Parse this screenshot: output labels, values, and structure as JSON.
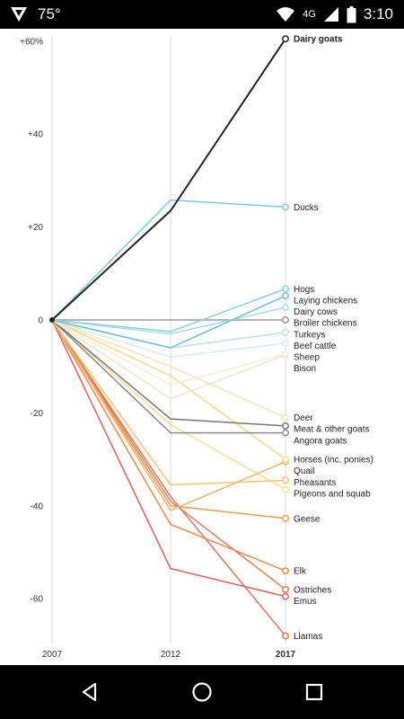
{
  "status_bar": {
    "temperature": "75°",
    "network": "4G",
    "time": "3:10",
    "icons": [
      "app-logo-icon",
      "wifi-icon",
      "signal-icon",
      "battery-icon"
    ]
  },
  "nav_bar": {
    "icons": [
      "back-icon",
      "home-icon",
      "recents-icon"
    ]
  },
  "chart_data": {
    "type": "line",
    "title": "",
    "xlabel": "",
    "ylabel": "",
    "x": [
      2007,
      2012,
      2017
    ],
    "x_tick_labels": [
      "2007",
      "2012",
      "2017"
    ],
    "x_tick_bold": [
      false,
      false,
      true
    ],
    "ylim": [
      -70,
      62
    ],
    "y_ticks": [
      60,
      40,
      20,
      0,
      -20,
      -40,
      -60
    ],
    "y_tick_labels": [
      "+60%",
      "+40",
      "+20",
      "0",
      "-20",
      "-40",
      "-60"
    ],
    "grid": "vertical",
    "legend": "end-labels",
    "series": [
      {
        "name": "Dairy goats",
        "values": [
          0,
          23.5,
          60.5
        ],
        "color": "#222222",
        "bold": true
      },
      {
        "name": "Ducks",
        "values": [
          0,
          25.8,
          24.3
        ],
        "color": "#7ec8e3"
      },
      {
        "name": "Hogs",
        "values": [
          0,
          -2.5,
          6.7
        ],
        "color": "#8ecfe8"
      },
      {
        "name": "Laying chickens",
        "values": [
          0,
          -6,
          5.2
        ],
        "color": "#6fbcd9"
      },
      {
        "name": "Dairy cows",
        "values": [
          0,
          -3,
          2.7
        ],
        "color": "#a9daee"
      },
      {
        "name": "Broiler chickens",
        "values": [
          0,
          0,
          0
        ],
        "color": "#999999"
      },
      {
        "name": "Turkeys",
        "values": [
          0,
          -6,
          -2.7
        ],
        "color": "#b8e0ef"
      },
      {
        "name": "Beef cattle",
        "values": [
          0,
          -8,
          -5
        ],
        "color": "#d5ecf5"
      },
      {
        "name": "Sheep",
        "values": [
          0,
          -14,
          -7.3
        ],
        "color": "#f5ecd2"
      },
      {
        "name": "Bison",
        "values": [
          0,
          -17,
          -7.5
        ],
        "color": "#efe6c8"
      },
      {
        "name": "Deer",
        "values": [
          0,
          -10,
          -21
        ],
        "color": "#f8e2b8"
      },
      {
        "name": "Meat & other goats",
        "values": [
          0,
          -21.3,
          -22.8
        ],
        "color": "#777777"
      },
      {
        "name": "Angora goats",
        "values": [
          0,
          -24.3,
          -24.3
        ],
        "color": "#8a8a8a"
      },
      {
        "name": "Horses (inc. ponies)",
        "values": [
          0,
          -12,
          -30
        ],
        "color": "#fbd68c"
      },
      {
        "name": "Quail",
        "values": [
          0,
          -41,
          -30.5
        ],
        "color": "#f6b167"
      },
      {
        "name": "Pheasants",
        "values": [
          0,
          -35.5,
          -34.5
        ],
        "color": "#f9c36f"
      },
      {
        "name": "Pigeons and squab",
        "values": [
          0,
          -22.5,
          -36.5
        ],
        "color": "#fbdc95"
      },
      {
        "name": "Geese",
        "values": [
          0,
          -40,
          -42.7
        ],
        "color": "#f39a51"
      },
      {
        "name": "Elk",
        "values": [
          0,
          -44,
          -54
        ],
        "color": "#ee8a4a"
      },
      {
        "name": "Ostriches",
        "values": [
          0,
          -39,
          -58
        ],
        "color": "#e87c55"
      },
      {
        "name": "Emus",
        "values": [
          0,
          -53.5,
          -59.5
        ],
        "color": "#e35b5b"
      },
      {
        "name": "Llamas",
        "values": [
          0,
          -38,
          -68
        ],
        "color": "#e0745e"
      }
    ]
  }
}
